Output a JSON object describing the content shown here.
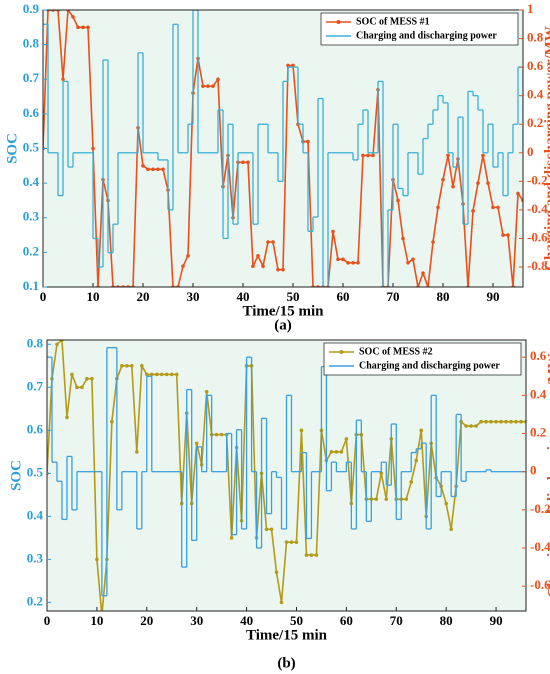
{
  "chart_data": [
    {
      "type": "line",
      "caption": "(a)",
      "xlabel": "Time/15 min",
      "ylabel": "SOC",
      "y2label": "Charging and discharging power/MW",
      "ycolor": "#2a9fd6",
      "y2color": "#e8501c",
      "x": [
        0,
        1,
        2,
        3,
        4,
        5,
        6,
        7,
        8,
        9,
        10,
        11,
        12,
        13,
        14,
        15,
        16,
        17,
        18,
        19,
        20,
        21,
        22,
        23,
        24,
        25,
        26,
        27,
        28,
        29,
        30,
        31,
        32,
        33,
        34,
        35,
        36,
        37,
        38,
        39,
        40,
        41,
        42,
        43,
        44,
        45,
        46,
        47,
        48,
        49,
        50,
        51,
        52,
        53,
        54,
        55,
        56,
        57,
        58,
        59,
        60,
        61,
        62,
        63,
        64,
        65,
        66,
        67,
        68,
        69,
        70,
        71,
        72,
        73,
        74,
        75,
        76,
        77,
        78,
        79,
        80,
        81,
        82,
        83,
        84,
        85,
        86,
        87,
        88,
        89,
        90,
        91,
        92,
        93,
        94,
        95,
        96
      ],
      "xlim": [
        0,
        96
      ],
      "xticks": [
        0,
        10,
        20,
        30,
        40,
        50,
        60,
        70,
        80,
        90
      ],
      "ylim": [
        0.1,
        0.9
      ],
      "yticks": [
        0.1,
        0.2,
        0.3,
        0.4,
        0.5,
        0.6,
        0.7,
        0.8,
        0.9
      ],
      "y2lim": [
        -0.94,
        1
      ],
      "y2ticks": [
        -0.8,
        -0.6,
        -0.4,
        -0.2,
        0,
        0.2,
        0.4,
        0.6,
        0.8,
        1
      ],
      "series": [
        {
          "name": "SOC of MESS #1",
          "color": "#e8501c",
          "axis": "y",
          "marker": true,
          "values": [
            0.5,
            0.9,
            0.9,
            0.9,
            0.7,
            0.9,
            0.88,
            0.85,
            0.85,
            0.85,
            0.5,
            0.1,
            0.41,
            0.35,
            0.1,
            0.1,
            0.1,
            0.1,
            0.1,
            0.56,
            0.45,
            0.44,
            0.44,
            0.44,
            0.44,
            0.38,
            0.1,
            0.1,
            0.16,
            0.19,
            0.66,
            0.76,
            0.68,
            0.68,
            0.68,
            0.7,
            0.39,
            0.48,
            0.3,
            0.46,
            0.46,
            0.46,
            0.16,
            0.19,
            0.16,
            0.23,
            0.23,
            0.15,
            0.15,
            0.74,
            0.74,
            0.57,
            0.52,
            0.52,
            0.1,
            0.1,
            0.1,
            0.1,
            0.26,
            0.18,
            0.18,
            0.17,
            0.17,
            0.17,
            0.48,
            0.48,
            0.48,
            0.67,
            0.1,
            0.1,
            0.41,
            0.35,
            0.24,
            0.17,
            0.18,
            0.1,
            0.14,
            0.1,
            0.23,
            0.33,
            0.41,
            0.48,
            0.39,
            0.47,
            0.34,
            0.1,
            0.32,
            0.4,
            0.48,
            0.4,
            0.33,
            0.33,
            0.25,
            0.25,
            0.1,
            0.37,
            0.35
          ]
        },
        {
          "name": "Charging and discharging power",
          "color": "#3bb0d8",
          "axis": "y2",
          "step": true,
          "values": [
            0.9,
            0,
            0,
            -0.3,
            0.5,
            -0.1,
            0,
            0,
            0,
            0,
            -0.6,
            -0.8,
            0.65,
            -0.7,
            -0.5,
            0,
            0,
            0,
            0,
            0.7,
            0,
            0,
            0,
            -0.05,
            -0.05,
            -0.4,
            0.9,
            0,
            0,
            0.2,
            1,
            0,
            0,
            0,
            0,
            0.3,
            -0.6,
            0.2,
            -0.5,
            0,
            0,
            0,
            -0.5,
            0.2,
            0.2,
            0,
            0,
            -0.2,
            0.5,
            0.6,
            0.6,
            0.2,
            0,
            -0.55,
            -0.45,
            0.38,
            -0.95,
            0,
            0,
            0,
            0,
            0,
            -0.05,
            0.2,
            0.3,
            0,
            0,
            0.5,
            -1,
            -0.4,
            0.2,
            -0.25,
            -0.3,
            0,
            0,
            -0.15,
            0.1,
            0.2,
            0.3,
            0.4,
            0.35,
            0,
            -0.1,
            0.25,
            -0.5,
            0.43,
            0.4,
            0.3,
            0,
            0.2,
            -0.1,
            0,
            -0.3,
            0,
            0.2,
            0.6,
            0
          ]
        }
      ]
    },
    {
      "type": "line",
      "caption": "(b)",
      "xlabel": "Time/15 min",
      "ylabel": "SOC",
      "y2label": "Charging and discharging power/MW",
      "ycolor": "#2a9fd6",
      "y2color": "#e8501c",
      "x": [
        0,
        1,
        2,
        3,
        4,
        5,
        6,
        7,
        8,
        9,
        10,
        11,
        12,
        13,
        14,
        15,
        16,
        17,
        18,
        19,
        20,
        21,
        22,
        23,
        24,
        25,
        26,
        27,
        28,
        29,
        30,
        31,
        32,
        33,
        34,
        35,
        36,
        37,
        38,
        39,
        40,
        41,
        42,
        43,
        44,
        45,
        46,
        47,
        48,
        49,
        50,
        51,
        52,
        53,
        54,
        55,
        56,
        57,
        58,
        59,
        60,
        61,
        62,
        63,
        64,
        65,
        66,
        67,
        68,
        69,
        70,
        71,
        72,
        73,
        74,
        75,
        76,
        77,
        78,
        79,
        80,
        81,
        82,
        83,
        84,
        85,
        86,
        87,
        88,
        89,
        90,
        91,
        92,
        93,
        94,
        95,
        96
      ],
      "xlim": [
        0,
        96
      ],
      "xticks": [
        0,
        10,
        20,
        30,
        40,
        50,
        60,
        70,
        80,
        90
      ],
      "ylim": [
        0.18,
        0.81
      ],
      "yticks": [
        0.2,
        0.3,
        0.4,
        0.5,
        0.6,
        0.7,
        0.8
      ],
      "y2lim": [
        -0.73,
        0.69
      ],
      "y2ticks": [
        -0.6,
        -0.4,
        -0.2,
        0,
        0.2,
        0.4,
        0.6
      ],
      "series": [
        {
          "name": "SOC of MESS #2",
          "color": "#b59a18",
          "axis": "y",
          "marker": true,
          "values": [
            0.5,
            0.72,
            0.8,
            0.81,
            0.63,
            0.73,
            0.7,
            0.7,
            0.72,
            0.72,
            0.3,
            0.17,
            0.3,
            0.62,
            0.72,
            0.75,
            0.75,
            0.75,
            0.55,
            0.75,
            0.73,
            0.73,
            0.73,
            0.73,
            0.73,
            0.73,
            0.73,
            0.43,
            0.64,
            0.43,
            0.57,
            0.52,
            0.69,
            0.59,
            0.59,
            0.59,
            0.59,
            0.35,
            0.56,
            0.39,
            0.75,
            0.75,
            0.35,
            0.5,
            0.37,
            0.37,
            0.27,
            0.2,
            0.34,
            0.34,
            0.34,
            0.6,
            0.31,
            0.31,
            0.31,
            0.6,
            0.53,
            0.55,
            0.55,
            0.55,
            0.58,
            0.43,
            0.59,
            0.59,
            0.44,
            0.44,
            0.44,
            0.5,
            0.44,
            0.58,
            0.44,
            0.44,
            0.44,
            0.48,
            0.53,
            0.6,
            0.4,
            0.57,
            0.49,
            0.47,
            0.43,
            0.37,
            0.47,
            0.62,
            0.61,
            0.61,
            0.61,
            0.62,
            0.62,
            0.62,
            0.62,
            0.62,
            0.62,
            0.62,
            0.62,
            0.62,
            0.62
          ]
        },
        {
          "name": "Charging and discharging power",
          "color": "#3a9fe0",
          "axis": "y2",
          "step": true,
          "values": [
            0.6,
            0.05,
            -0.05,
            -0.25,
            0.08,
            -0.2,
            0,
            0,
            0,
            0,
            0,
            -0.65,
            0.65,
            0.65,
            -0.2,
            0,
            0,
            0,
            -0.3,
            0,
            0.5,
            0,
            0,
            0,
            0,
            0,
            0,
            -0.5,
            0.43,
            -0.36,
            0.13,
            0,
            0.4,
            0,
            0,
            0,
            0.2,
            -0.33,
            0.22,
            -0.3,
            0.6,
            0,
            -0.4,
            0.28,
            -0.22,
            0,
            -0.03,
            -0.3,
            0.4,
            0,
            0,
            0.1,
            -0.35,
            0,
            0,
            0.55,
            -0.1,
            0.05,
            0,
            0,
            0.05,
            -0.3,
            0.27,
            0,
            -0.26,
            0,
            0,
            0.05,
            -0.07,
            0.25,
            -0.25,
            0,
            0,
            0.1,
            0.12,
            0.15,
            -0.3,
            0.4,
            -0.13,
            0,
            0,
            -0.13,
            0.3,
            -0.05,
            0,
            0,
            0,
            0,
            0.01,
            0,
            0,
            0,
            0,
            0,
            0,
            0,
            0
          ]
        }
      ]
    }
  ]
}
